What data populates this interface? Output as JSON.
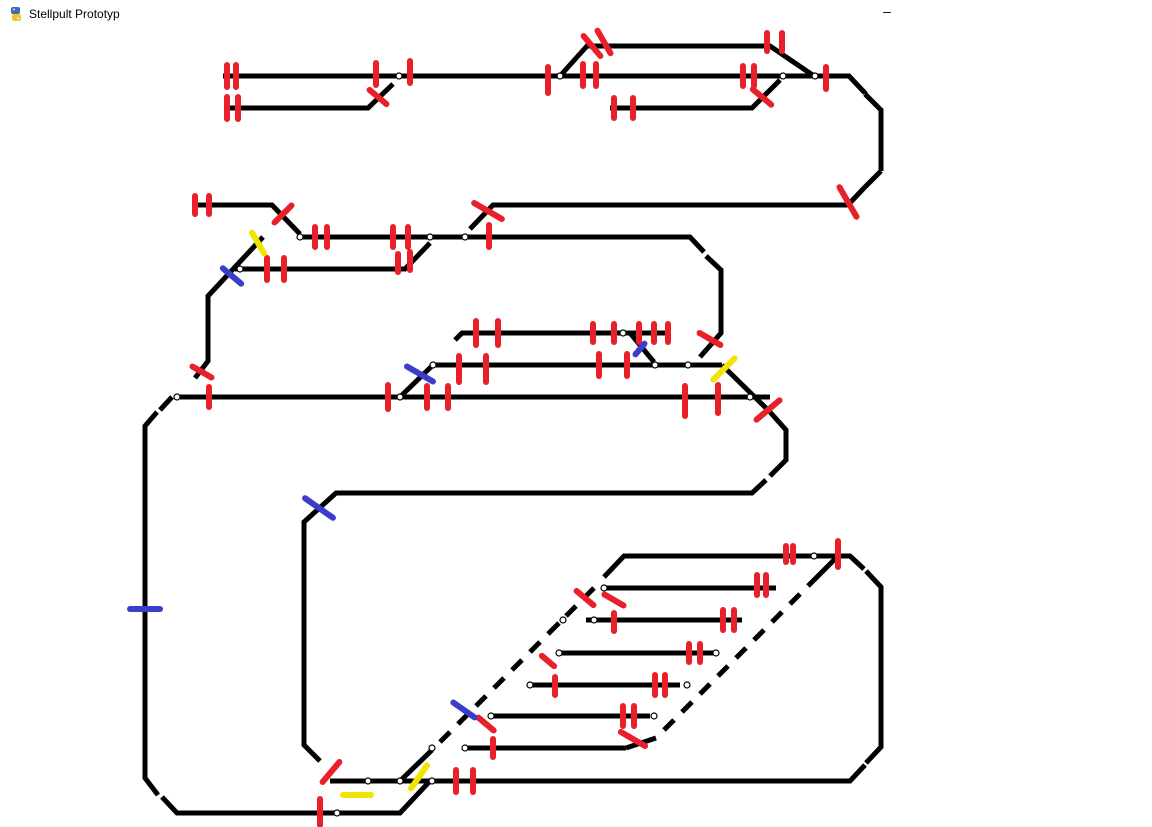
{
  "window": {
    "title": "Stellpult Prototyp",
    "minimize_glyph": "–",
    "icon": "python-icon"
  },
  "colors": {
    "track": "#000000",
    "signal_red": "#e8202a",
    "signal_blue": "#3a3ec8",
    "signal_yellow": "#f0e400",
    "background": "#ffffff"
  },
  "legend_kinds": [
    "red",
    "blue",
    "yellow"
  ]
}
